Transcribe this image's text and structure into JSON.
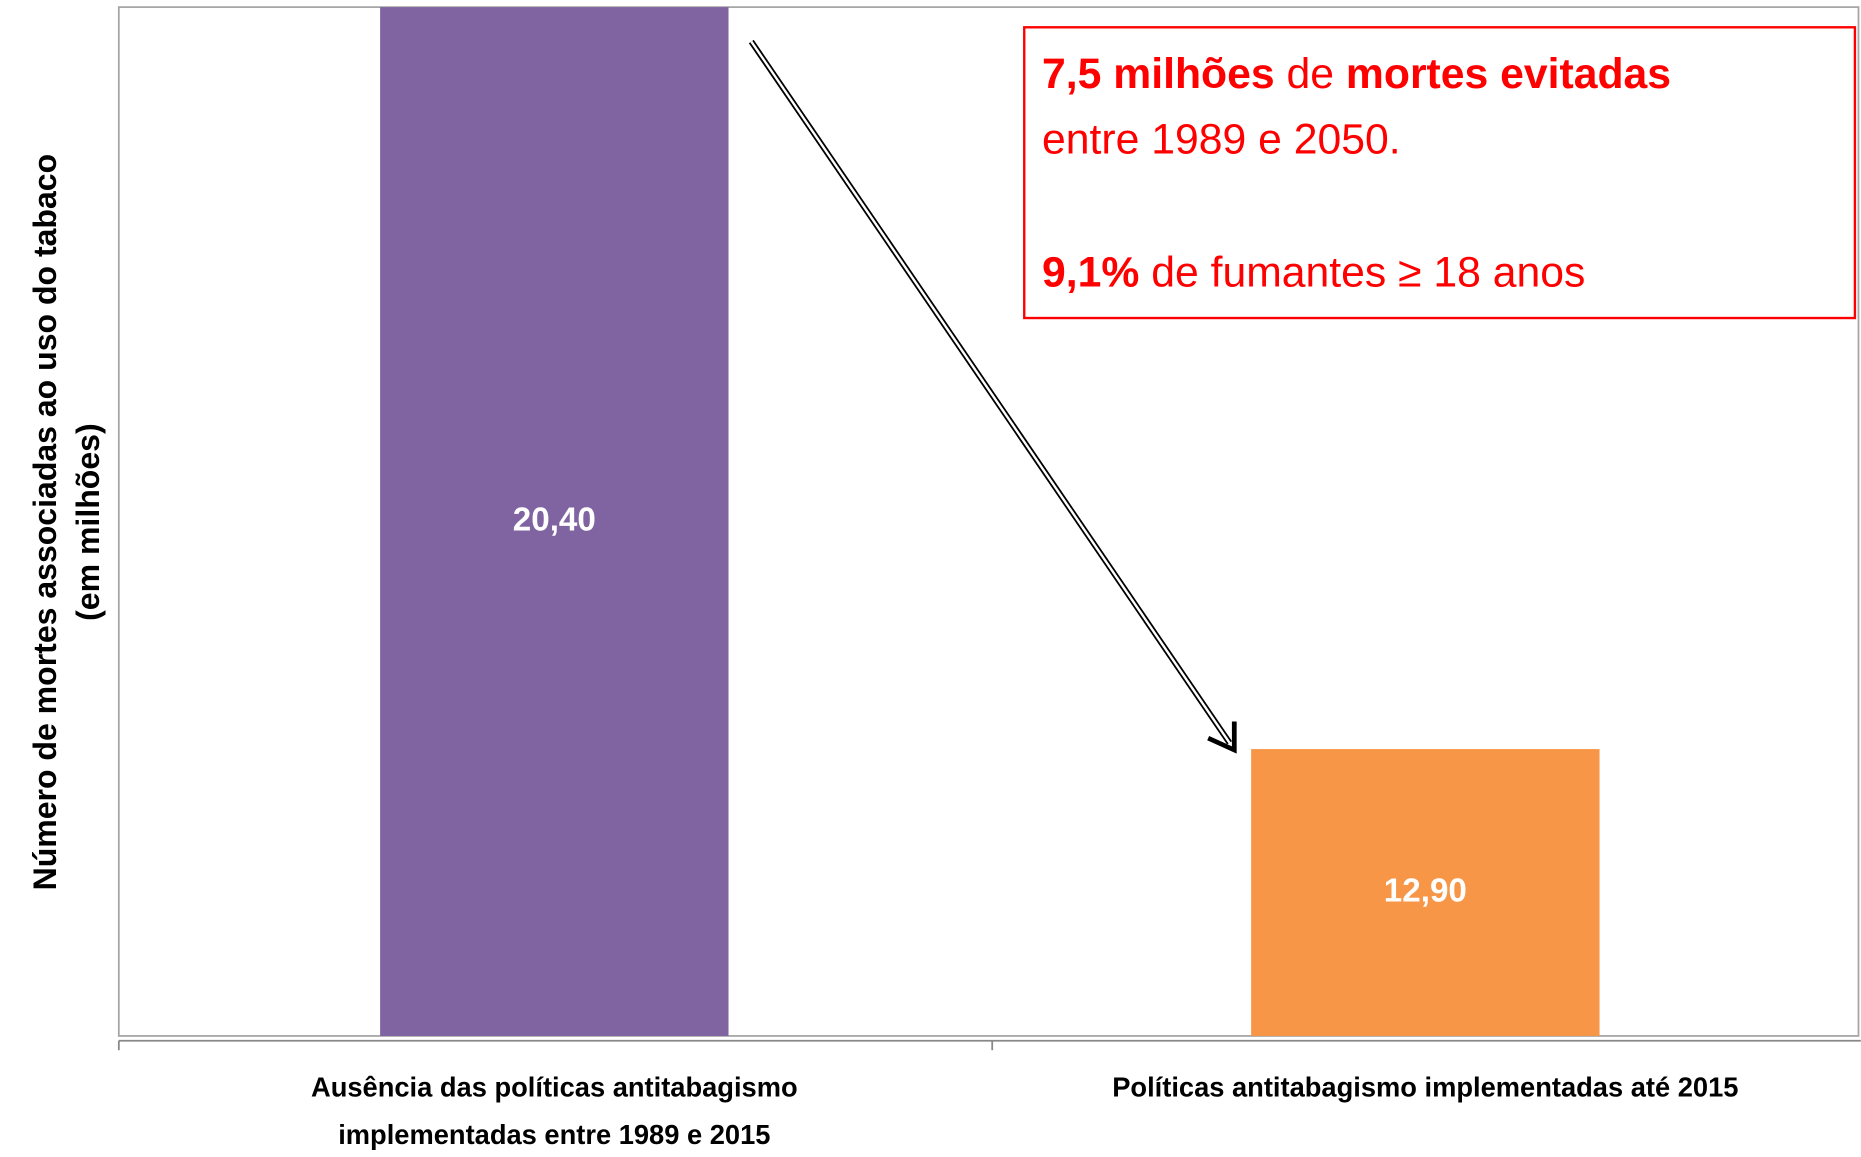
{
  "chart_data": {
    "type": "bar",
    "ylabel": [
      "Número de mortes associadas ao uso do tabaco",
      "(em milhões)"
    ],
    "categories": [
      [
        "Ausência das políticas antitabagismo",
        "implementadas entre 1989 e 2015"
      ],
      [
        "Políticas antitabagismo implementadas até 2015"
      ]
    ],
    "values": [
      20.4,
      12.9
    ],
    "value_labels": [
      "20,40",
      "12,90"
    ],
    "colors": [
      "#8064a2",
      "#f79646"
    ],
    "ylim": [
      10,
      20.4
    ],
    "annotation": [
      [
        {
          "text": "7,5 milhões",
          "bold": true
        },
        {
          "text": " de ",
          "bold": false
        },
        {
          "text": "mortes evitadas",
          "bold": true
        }
      ],
      [
        {
          "text": "entre 1989 e 2050.",
          "bold": false
        }
      ],
      [
        {
          "text": "9,1%",
          "bold": true
        },
        {
          "text": " de fumantes ≥ 18 anos",
          "bold": false
        }
      ]
    ]
  }
}
